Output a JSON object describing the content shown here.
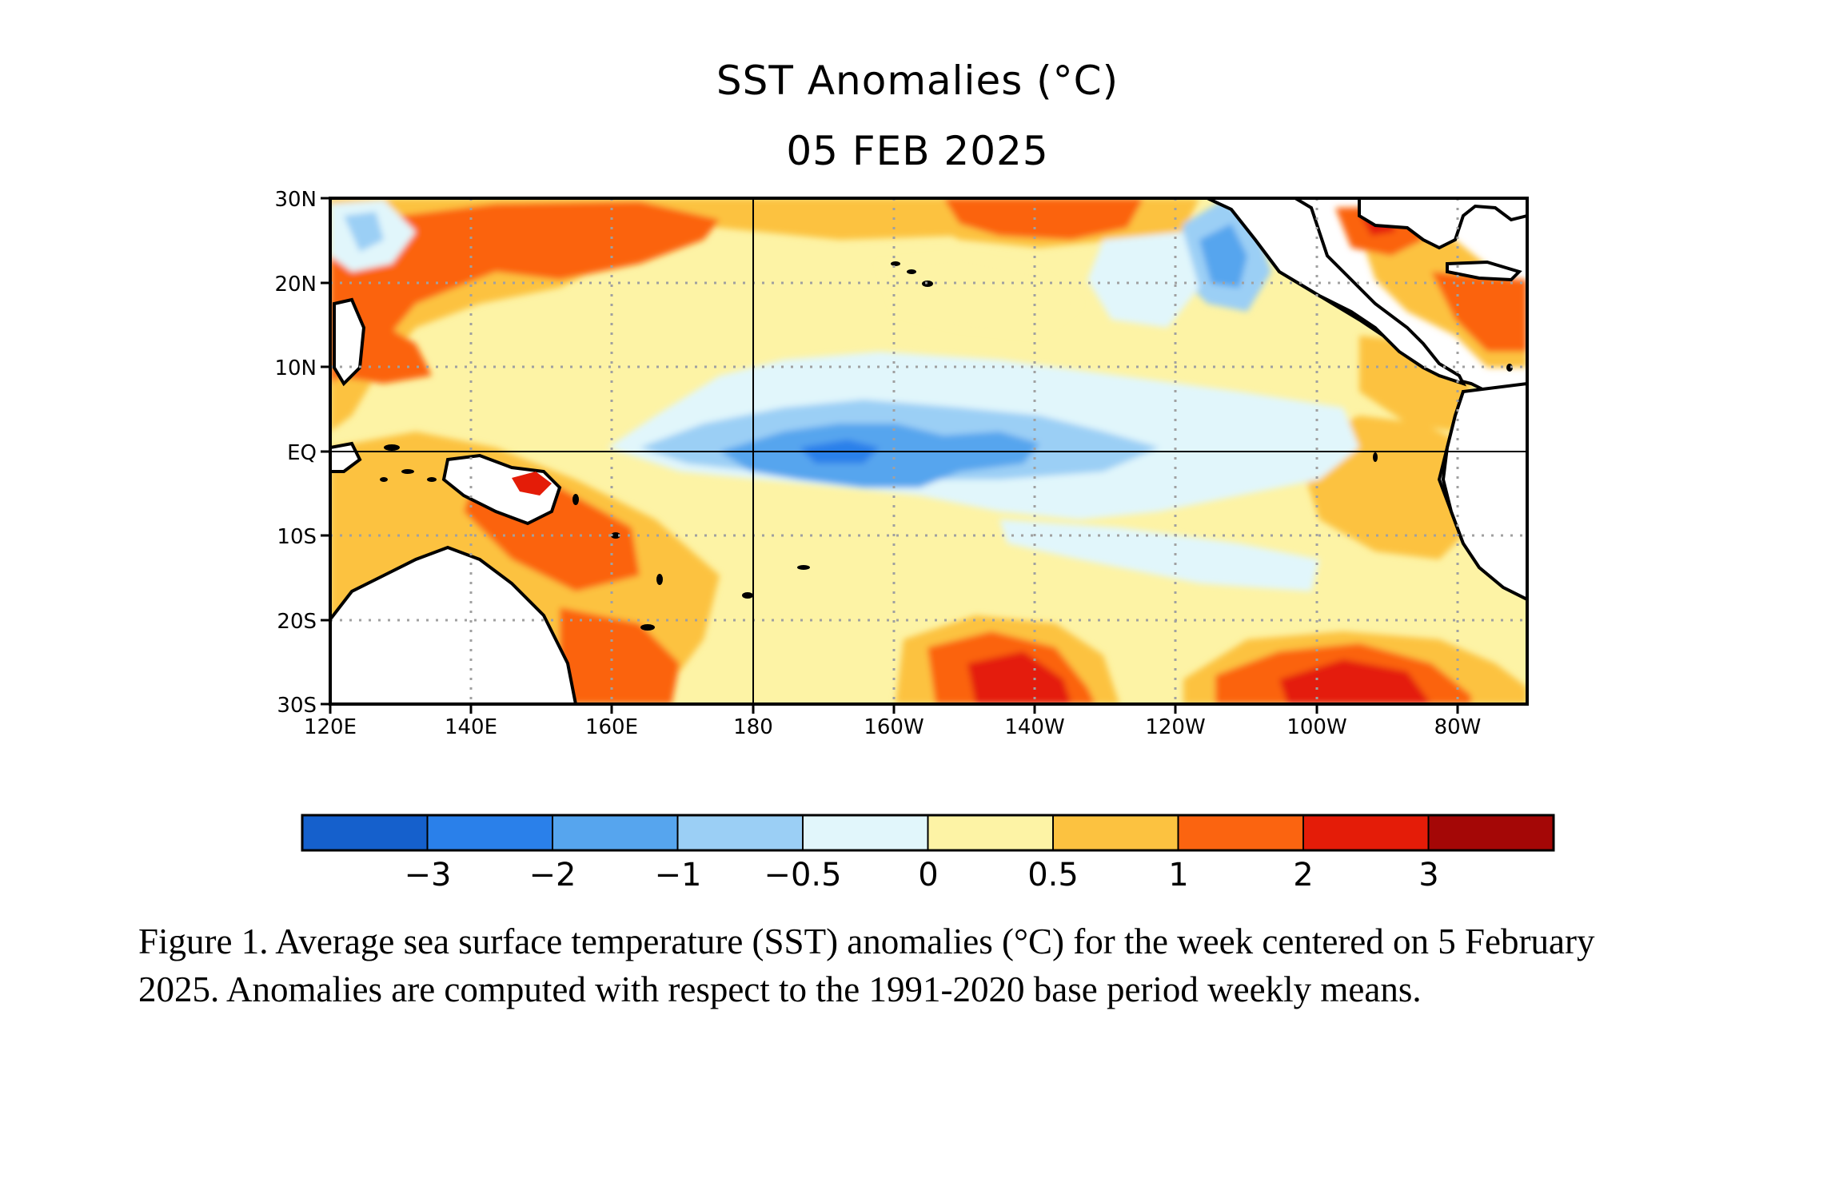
{
  "title": "SST Anomalies (°C)",
  "date": "05 FEB 2025",
  "map": {
    "lat_labels": [
      "30N",
      "20N",
      "10N",
      "EQ",
      "10S",
      "20S",
      "30S"
    ],
    "lon_labels": [
      "120E",
      "140E",
      "160E",
      "180",
      "160W",
      "140W",
      "120W",
      "100W",
      "80W"
    ],
    "lat_range": [
      -30,
      30
    ],
    "lon_range": [
      120,
      290
    ]
  },
  "colorbar": {
    "colors": [
      "#1560cc",
      "#2a80ea",
      "#56a5ee",
      "#9bcff5",
      "#e1f6fb",
      "#fdf3a5",
      "#fcc240",
      "#fb6410",
      "#e41c08",
      "#a40706"
    ],
    "ticks": [
      "−3",
      "−2",
      "−1",
      "−0.5",
      "0",
      "0.5",
      "1",
      "2",
      "3"
    ]
  },
  "caption": "Figure 1. Average sea surface temperature (SST) anomalies (°C) for the week centered on 5 February 2025.  Anomalies are computed with respect to the 1991-2020 base period weekly means."
}
